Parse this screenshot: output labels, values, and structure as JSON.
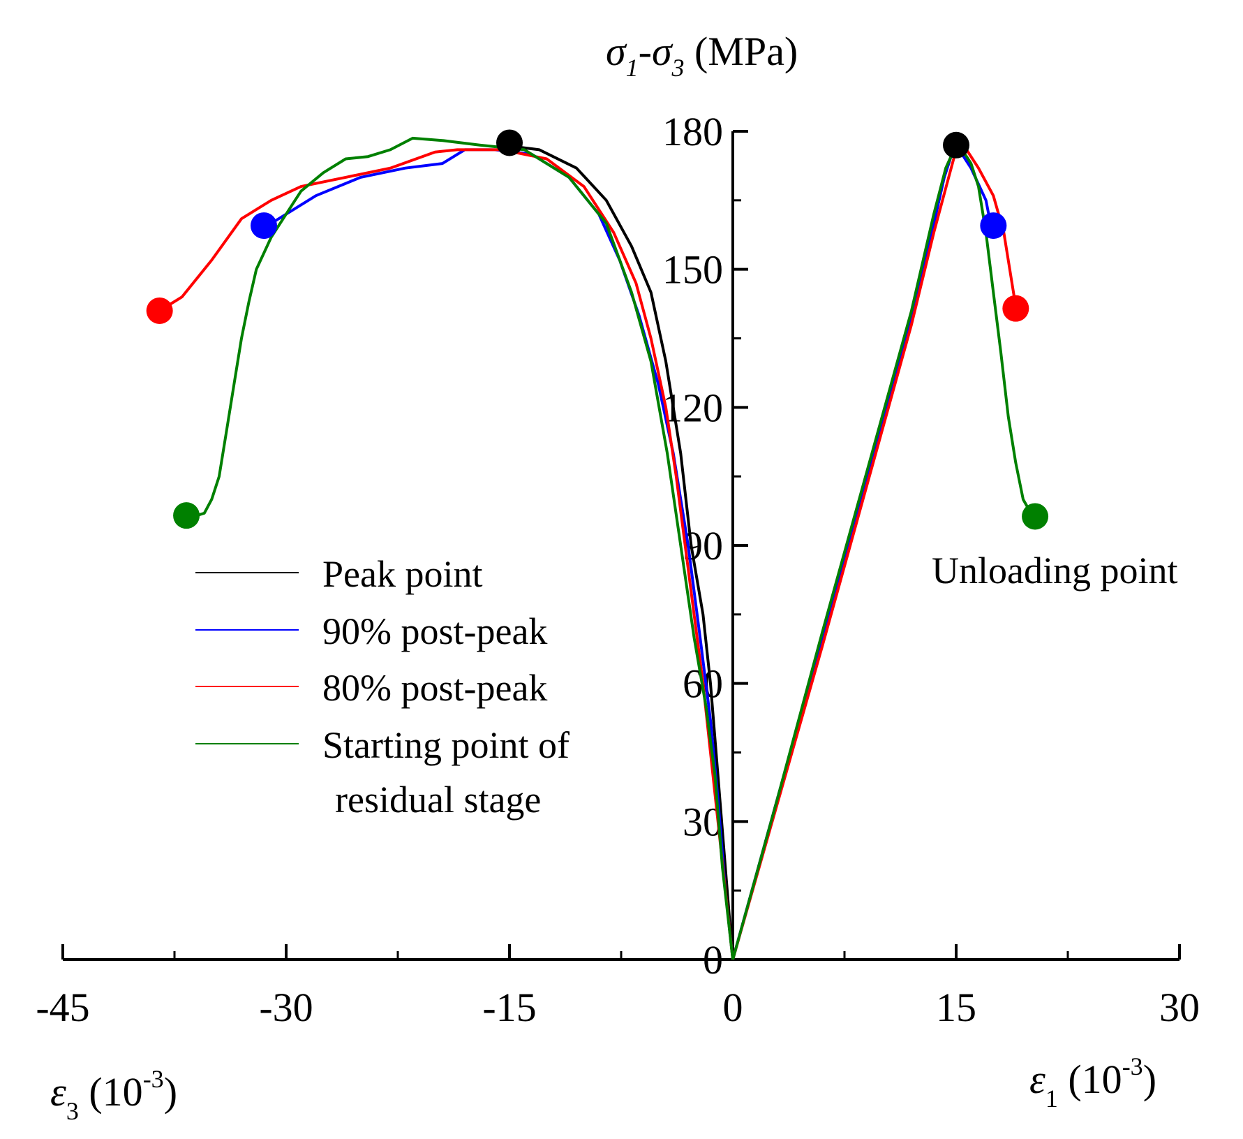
{
  "chart_data": {
    "type": "line",
    "title": "",
    "ylabel": {
      "sym1": "σ",
      "sub1": "1",
      "dash": "-",
      "sym2": "σ",
      "sub2": "3",
      "unit": " (MPa)"
    },
    "xlabel_left": {
      "sym": "ε",
      "sub": "3",
      "unit_pre": " (10",
      "exp": "-3",
      "unit_post": ")"
    },
    "xlabel_right": {
      "sym": "ε",
      "sub": "1",
      "unit_pre": " (10",
      "exp": "-3",
      "unit_post": ")"
    },
    "xlim": [
      -45,
      30
    ],
    "ylim": [
      0,
      180
    ],
    "x_ticks": [
      -45,
      -30,
      -15,
      0,
      15,
      30
    ],
    "x_tick_labels": [
      "-45",
      "-30",
      "-15",
      "0",
      "15",
      "30"
    ],
    "y_ticks": [
      0,
      30,
      60,
      90,
      120,
      150,
      180
    ],
    "y_tick_labels": [
      "0",
      "30",
      "60",
      "90",
      "120",
      "150",
      "180"
    ],
    "annotation": "Unloading point",
    "legend": [
      {
        "label": "Peak point",
        "color": "#000000"
      },
      {
        "label": "90% post-peak",
        "color": "#0000ff"
      },
      {
        "label": "80% post-peak",
        "color": "#ff0000"
      },
      {
        "label": "Starting point of",
        "label2": "residual stage",
        "color": "#008000"
      }
    ],
    "series": [
      {
        "name": "Peak point",
        "color": "#000000",
        "pre_peak": [
          [
            0,
            0
          ],
          [
            3,
            35
          ],
          [
            6,
            70
          ],
          [
            9,
            105
          ],
          [
            12,
            140
          ],
          [
            13.5,
            160
          ],
          [
            14.2,
            170
          ],
          [
            14.8,
            176
          ]
        ],
        "epsilon3": [
          [
            0,
            0
          ],
          [
            -0.5,
            20
          ],
          [
            -1,
            40
          ],
          [
            -1.5,
            60
          ],
          [
            -2,
            75
          ],
          [
            -2.8,
            90
          ],
          [
            -3.5,
            110
          ],
          [
            -4.5,
            130
          ],
          [
            -5.5,
            145
          ],
          [
            -6.8,
            155
          ],
          [
            -8.5,
            165
          ],
          [
            -10.5,
            172
          ],
          [
            -13,
            176
          ],
          [
            -15,
            176.8
          ]
        ],
        "unload_eps1": [
          [
            14.8,
            176.8
          ]
        ],
        "unload_eps3": [
          [
            -15,
            176.8
          ]
        ]
      },
      {
        "name": "90% post-peak",
        "color": "#0000ff",
        "pre_peak": [
          [
            0,
            0
          ],
          [
            3,
            35
          ],
          [
            6,
            70
          ],
          [
            9,
            105
          ],
          [
            12,
            140
          ],
          [
            13.5,
            160
          ],
          [
            14.2,
            170
          ],
          [
            14.8,
            176
          ]
        ],
        "epsilon3": [
          [
            0,
            0
          ],
          [
            -0.5,
            15
          ],
          [
            -1,
            35
          ],
          [
            -1.5,
            52
          ],
          [
            -2.2,
            70
          ],
          [
            -3,
            90
          ],
          [
            -4,
            110
          ],
          [
            -5,
            125
          ],
          [
            -6.3,
            140
          ],
          [
            -7.6,
            152
          ],
          [
            -9,
            162
          ],
          [
            -11,
            170
          ],
          [
            -13.5,
            175
          ],
          [
            -16,
            176
          ],
          [
            -18,
            176
          ],
          [
            -19.5,
            173
          ],
          [
            -22,
            172
          ],
          [
            -25,
            170
          ],
          [
            -28,
            166
          ],
          [
            -31,
            160
          ]
        ],
        "unload_eps1": [
          [
            15,
            177
          ],
          [
            16,
            172
          ],
          [
            17,
            165
          ],
          [
            17.3,
            160
          ]
        ],
        "unload_eps3": [
          [
            -31,
            160
          ]
        ]
      },
      {
        "name": "80% post-peak",
        "color": "#ff0000",
        "pre_peak": [
          [
            0,
            0
          ],
          [
            3,
            34
          ],
          [
            6,
            68
          ],
          [
            9,
            103
          ],
          [
            12,
            138
          ],
          [
            13.5,
            158
          ],
          [
            14.5,
            170
          ],
          [
            15,
            176
          ]
        ],
        "epsilon3": [
          [
            0,
            0
          ],
          [
            -0.5,
            15
          ],
          [
            -1,
            30
          ],
          [
            -1.5,
            45
          ],
          [
            -2,
            60
          ],
          [
            -2.6,
            75
          ],
          [
            -3.2,
            90
          ],
          [
            -3.8,
            105
          ],
          [
            -4.5,
            120
          ],
          [
            -5.5,
            135
          ],
          [
            -6.5,
            147
          ],
          [
            -8,
            158
          ],
          [
            -10,
            168
          ],
          [
            -12.5,
            174
          ],
          [
            -15.5,
            176
          ],
          [
            -18.5,
            176
          ],
          [
            -20,
            175.5
          ],
          [
            -23,
            172
          ],
          [
            -26,
            170
          ],
          [
            -29,
            168
          ],
          [
            -31,
            165
          ],
          [
            -33,
            161
          ],
          [
            -35,
            152
          ],
          [
            -37,
            144
          ],
          [
            -38.5,
            141
          ]
        ],
        "unload_eps1": [
          [
            15.5,
            177
          ],
          [
            16.5,
            172
          ],
          [
            17.5,
            166
          ],
          [
            18.2,
            158
          ],
          [
            18.6,
            150
          ],
          [
            19,
            142
          ]
        ],
        "unload_eps3": [
          [
            -38.5,
            141
          ]
        ]
      },
      {
        "name": "Starting point of residual stage",
        "color": "#008000",
        "pre_peak": [
          [
            0,
            0
          ],
          [
            3,
            35
          ],
          [
            6,
            71
          ],
          [
            9,
            106
          ],
          [
            12,
            141
          ],
          [
            13.5,
            162
          ],
          [
            14.3,
            172
          ],
          [
            15,
            177
          ]
        ],
        "epsilon3": [
          [
            0,
            0
          ],
          [
            -0.7,
            20
          ],
          [
            -1.2,
            40
          ],
          [
            -1.8,
            55
          ],
          [
            -2.6,
            70
          ],
          [
            -3.5,
            90
          ],
          [
            -4.4,
            110
          ],
          [
            -5.5,
            130
          ],
          [
            -6.8,
            145
          ],
          [
            -8.5,
            160
          ],
          [
            -11,
            170
          ],
          [
            -14,
            176
          ],
          [
            -17,
            177
          ],
          [
            -19.5,
            178
          ],
          [
            -21.5,
            178.5
          ],
          [
            -23,
            176
          ],
          [
            -24.5,
            174.5
          ],
          [
            -26,
            174
          ],
          [
            -27.5,
            171
          ],
          [
            -29,
            167
          ],
          [
            -30,
            162
          ],
          [
            -31,
            157
          ],
          [
            -32,
            150
          ],
          [
            -32.5,
            143
          ],
          [
            -33,
            135
          ],
          [
            -33.5,
            125
          ],
          [
            -34,
            115
          ],
          [
            -34.5,
            105
          ],
          [
            -35,
            100
          ],
          [
            -35.5,
            97
          ],
          [
            -36,
            96.5
          ]
        ],
        "unload_eps1": [
          [
            15,
            178
          ],
          [
            16,
            173
          ],
          [
            16.5,
            168
          ],
          [
            17,
            158
          ],
          [
            17.5,
            145
          ],
          [
            18,
            132
          ],
          [
            18.5,
            118
          ],
          [
            19,
            108
          ],
          [
            19.5,
            100
          ],
          [
            20.2,
            96
          ]
        ],
        "unload_eps3": [
          [
            -36,
            96.5
          ]
        ]
      }
    ],
    "markers": [
      {
        "name": "peak-eps3",
        "x": -15,
        "y": 177.5,
        "color": "#000000"
      },
      {
        "name": "peak-eps1",
        "x": 15,
        "y": 177,
        "color": "#000000"
      },
      {
        "name": "p90-eps3",
        "x": -31.5,
        "y": 159.5,
        "color": "#0000ff"
      },
      {
        "name": "p90-eps1",
        "x": 17.5,
        "y": 159.5,
        "color": "#0000ff"
      },
      {
        "name": "p80-eps3",
        "x": -38.5,
        "y": 141,
        "color": "#ff0000"
      },
      {
        "name": "p80-eps1",
        "x": 19,
        "y": 141.5,
        "color": "#ff0000"
      },
      {
        "name": "res-eps3",
        "x": -36.7,
        "y": 96.5,
        "color": "#008000"
      },
      {
        "name": "res-eps1",
        "x": 20.3,
        "y": 96.3,
        "color": "#008000"
      }
    ]
  }
}
